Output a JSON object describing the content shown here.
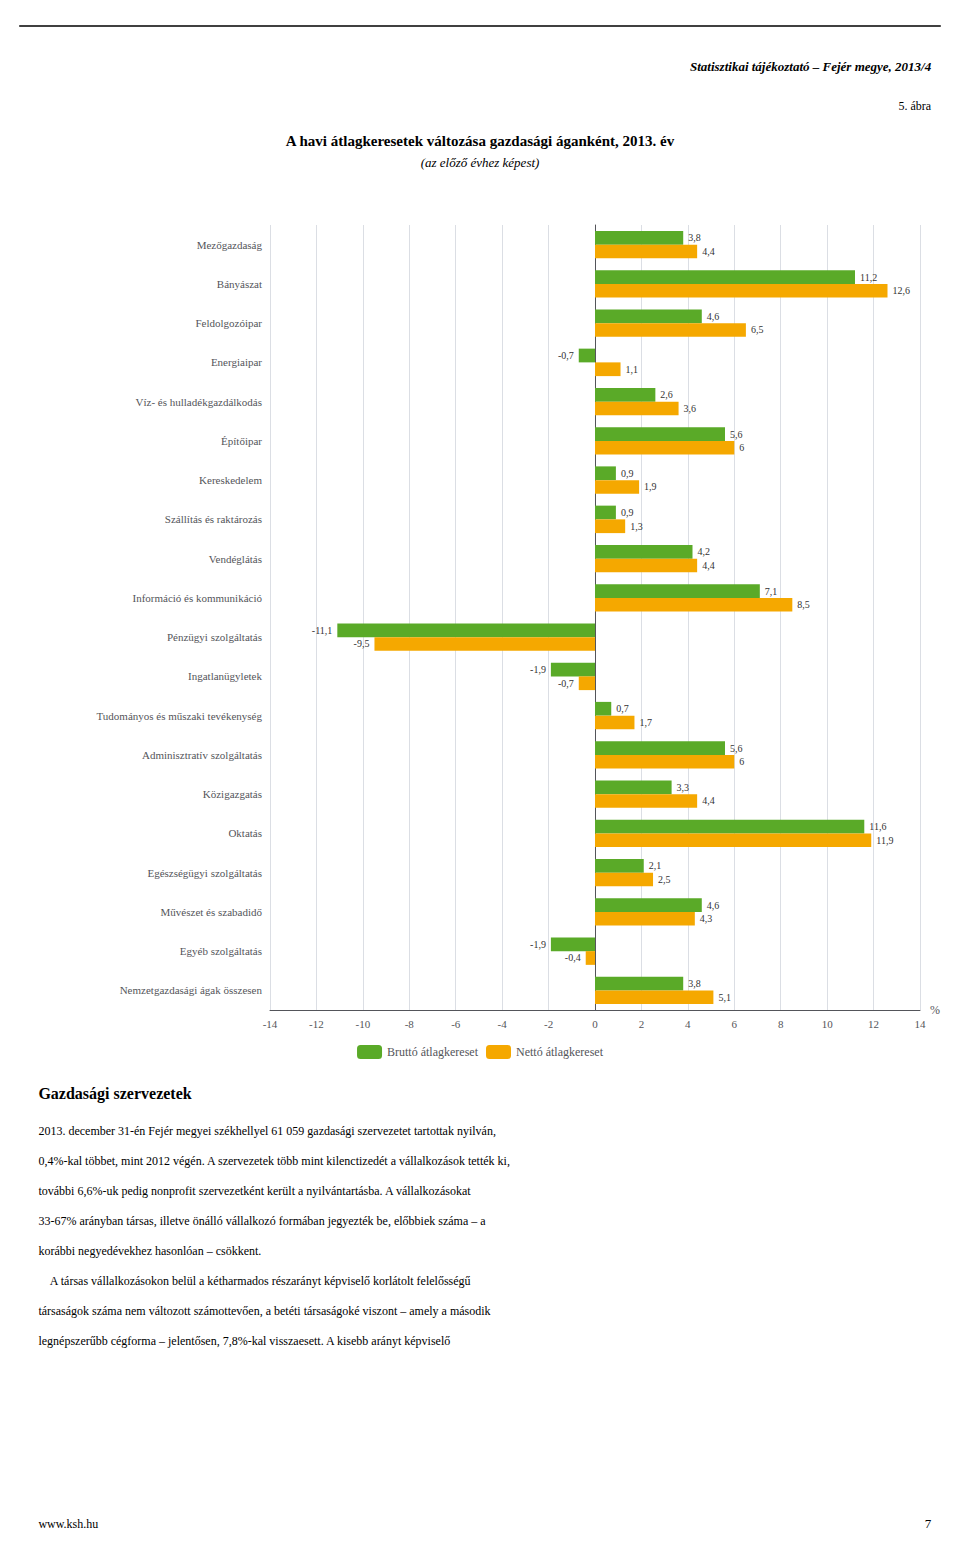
{
  "chart_data": {
    "type": "bar",
    "orientation": "horizontal",
    "title": "A havi átlagkeresetek változása gazdasági áganként, 2013. év",
    "subtitle": "(az előző évhez képest)",
    "categories": [
      "Mezőgazdaság",
      "Bányászat",
      "Feldolgozóipar",
      "Energiaipar",
      "Víz- és hulladékgazdálkodás",
      "Építőipar",
      "Kereskedelem",
      "Szállítás és raktározás",
      "Vendéglátás",
      "Információ és kommunikáció",
      "Pénzügyi szolgáltatás",
      "Ingatlanügyletek",
      "Tudományos és műszaki tevékenység",
      "Adminisztratív szolgáltatás",
      "Közigazgatás",
      "Oktatás",
      "Egészségügyi szolgáltatás",
      "Művészet és szabadidő",
      "Egyéb szolgáltatás",
      "Nemzetgazdasági ágak összesen"
    ],
    "series": [
      {
        "name": "Bruttó átlagkereset",
        "color": "#5aaa28",
        "values": [
          3.8,
          11.2,
          4.6,
          -0.7,
          2.6,
          5.6,
          0.9,
          0.9,
          4.2,
          7.1,
          -11.1,
          -1.9,
          0.7,
          5.6,
          3.3,
          11.6,
          2.1,
          4.6,
          -1.9,
          3.8
        ],
        "value_labels": [
          "3,8",
          "11,2",
          "4,6",
          "-0,7",
          "2,6",
          "5,6",
          "0,9",
          "0,9",
          "4,2",
          "7,1",
          "-11,1",
          "-1,9",
          "0,7",
          "5,6",
          "3,3",
          "11,6",
          "2,1",
          "4,6",
          "-1,9",
          "3,8"
        ]
      },
      {
        "name": "Nettó átlagkereset",
        "color": "#f5a800",
        "values": [
          4.4,
          12.6,
          6.5,
          1.1,
          3.6,
          6.0,
          1.9,
          1.3,
          4.4,
          8.5,
          -9.5,
          -0.7,
          1.7,
          6.0,
          4.4,
          11.9,
          2.5,
          4.3,
          -0.4,
          5.1
        ],
        "value_labels": [
          "4,4",
          "12,6",
          "6,5",
          "1,1",
          "3,6",
          "6",
          "1,9",
          "1,3",
          "4,4",
          "8,5",
          "-9,5",
          "-0,7",
          "1,7",
          "6",
          "4,4",
          "11,9",
          "2,5",
          "4,3",
          "-0,4",
          "5,1"
        ]
      }
    ],
    "xlabel": "%",
    "xlim": [
      -14,
      14
    ],
    "xticks": [
      -14,
      -12,
      -10,
      -8,
      -6,
      -4,
      -2,
      0,
      2,
      4,
      6,
      8,
      10,
      12,
      14
    ],
    "grid": true,
    "legend": "bottom",
    "data_labels": true,
    "annotations": [
      "Statisztikai tájékoztató – Fejér megye, 2013/4",
      "5. ábra",
      "Gazdasági szervezetek",
      "2013. december 31-én Fejér megyei székhellyel 61 059 gazdasági szervezetet tartottak nyilván,",
      "0,4%-kal többet, mint 2012 végén. A szervezetek több mint kilenctizedét a vállalkozások tették ki,",
      "további 6,6%-uk pedig nonprofit szervezetként került a nyilvántartásba. A vállalkozásokat",
      "33-67% arányban társas, illetve önálló vállalkozó formában jegyezték be, előbbiek száma – a",
      "korábbi negyedévekhez hasonlóan – csökkent.",
      "    A társas vállalkozásokon belül a kétharmados részarányt képviselő korlátolt felelősségű",
      "társaságok száma nem változott számottevően, a betéti társaságoké viszont – amely a második",
      "legnépszerűbb cégforma – jelentősen, 7,8%-kal visszaesett. A kisebb arányt képviselő",
      "www.ksh.hu",
      "7"
    ]
  }
}
